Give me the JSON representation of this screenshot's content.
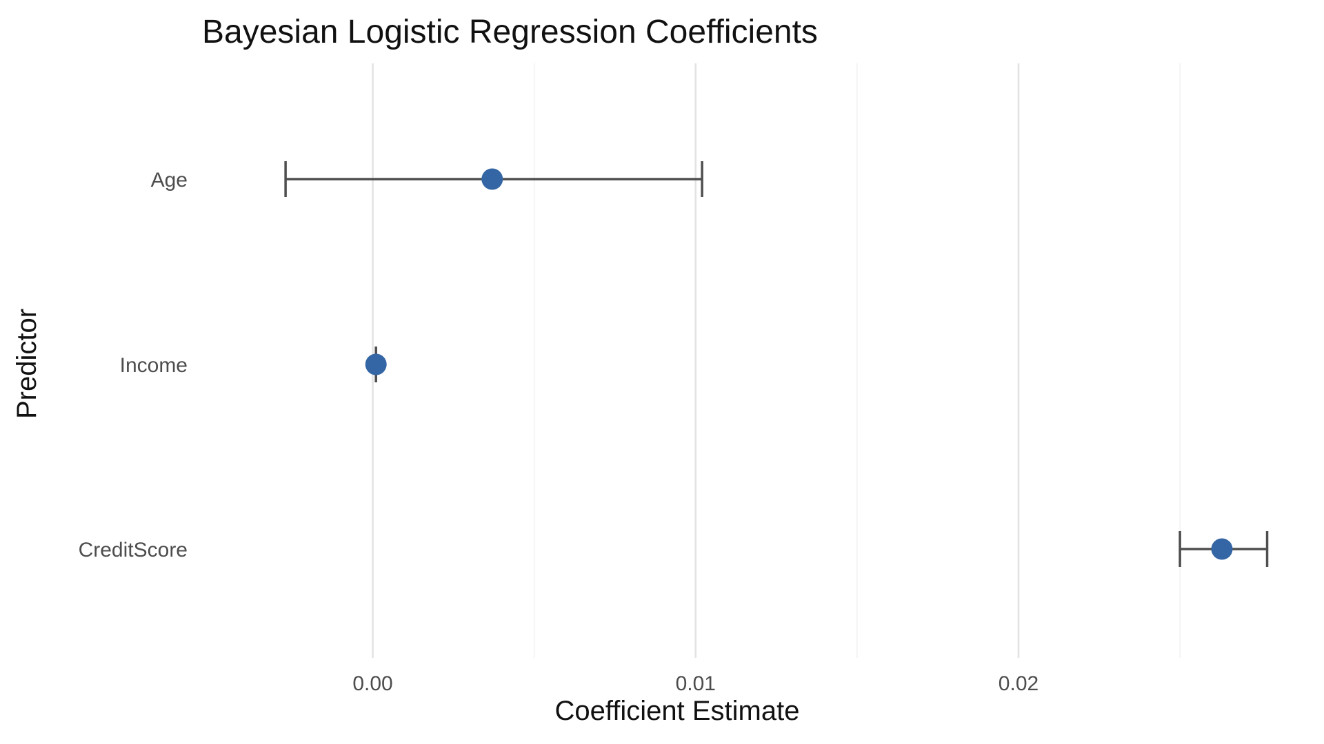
{
  "chart_data": {
    "type": "scatter",
    "title": "Bayesian Logistic Regression Coefficients",
    "xlabel": "Coefficient Estimate",
    "ylabel": "Predictor",
    "xlim": [
      -0.0055,
      0.0285
    ],
    "x_ticks": [
      0.0,
      0.01,
      0.02
    ],
    "x_tick_labels": [
      "0.00",
      "0.01",
      "0.02"
    ],
    "x_minor_ticks": [
      0.005,
      0.015,
      0.025
    ],
    "grid": "vertical",
    "categories": [
      "Age",
      "Income",
      "CreditScore"
    ],
    "series": [
      {
        "points": [
          {
            "predictor": "Age",
            "estimate": 0.0037,
            "lower": -0.0027,
            "upper": 0.0102
          },
          {
            "predictor": "Income",
            "estimate": 0.0001,
            "lower": 0.0001,
            "upper": 0.0001
          },
          {
            "predictor": "CreditScore",
            "estimate": 0.0263,
            "lower": 0.025,
            "upper": 0.0277
          }
        ]
      }
    ],
    "colors": {
      "point": "#3465a4",
      "errorbar": "#4f4f4f",
      "grid_major": "#e3e3e3",
      "grid_minor": "#efefef"
    }
  }
}
